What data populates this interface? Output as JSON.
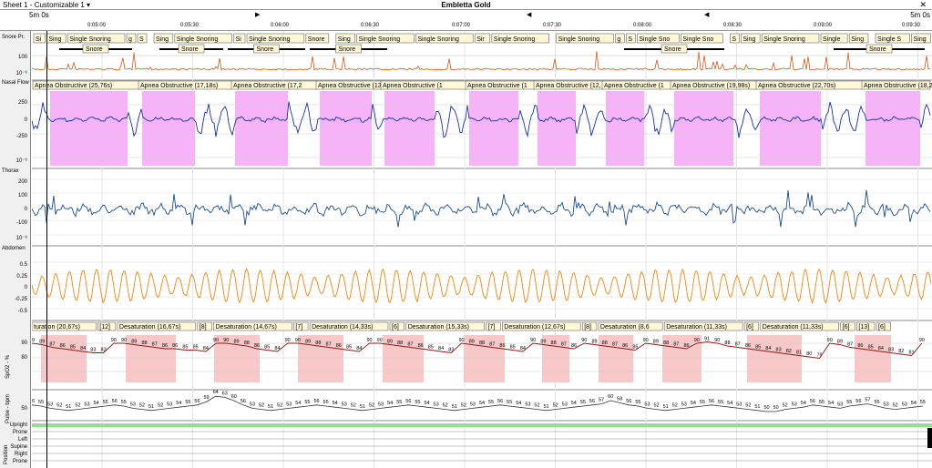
{
  "window": {
    "sheet_label": "Sheet 1 - Customizable 1 ▾",
    "title": "Embletta Gold",
    "close_glyph": "✕"
  },
  "timebar": {
    "epoch_left": "5m 0s",
    "epoch_right": "5m 0s",
    "ticks": [
      "0:05:00",
      "0:05:30",
      "0:06:00",
      "0:06:30",
      "0:07:00",
      "0:07:30",
      "0:08:00",
      "0:08:30",
      "0:09:00",
      "0:09:30"
    ],
    "markers": [
      "▶",
      "◀",
      "◀"
    ]
  },
  "channels": [
    {
      "label": "Snore Pr.",
      "ticks": [
        "100",
        "10⁻⁶"
      ]
    },
    {
      "label": "Nasal Flow",
      "ticks": [
        "250",
        "0",
        "-250",
        "10⁻⁶"
      ]
    },
    {
      "label": "Thorax",
      "ticks": [
        "200",
        "100",
        "0",
        "-100",
        "10⁻⁶"
      ]
    },
    {
      "label": "Abdomen",
      "ticks": [
        "0.5",
        "0.25",
        "0",
        "-0.25",
        "-0.5"
      ]
    },
    {
      "label": "SpO2 - %",
      "ticks": [
        "90",
        "80"
      ]
    },
    {
      "label": "Pulse - bpm",
      "ticks": [
        "50"
      ]
    },
    {
      "label": "Position",
      "ticks": [
        "Upright",
        "Prone",
        "Left",
        "Supine",
        "Right",
        "Prone"
      ]
    }
  ],
  "snore_events": [
    "Si",
    "Sing",
    "Single Snoring",
    "g",
    "S",
    "Sing",
    "Single Snoring",
    "Si",
    "Single Snoring",
    "Snore",
    "Sing",
    "Single Snoring",
    "Single Snoring",
    "Sir",
    "Single Snoring",
    "Single Snoring",
    "g",
    "S",
    "Single Sno",
    "Single Sno",
    "S",
    "Sing",
    "Single Snoring",
    "Single",
    "Sing",
    "Single S",
    "Sing",
    "Single",
    "S",
    "S"
  ],
  "snore_bars": [
    "Snore",
    "Snore",
    "Snore",
    "Snore",
    "Snore",
    "Snore"
  ],
  "apnea_events": [
    "Apnea Obstructive (25,76s)",
    "Apnea Obstructive (17,18s)",
    "Apnea Obstructive (17,2",
    "Apnea Obstructive (13,",
    "Apnea Obstructive (1",
    "Apnea Obstructive (1",
    "Apnea Obstructive (12,",
    "Apnea Obstructive (1",
    "Apnea Obstructive (19,98s)",
    "Apnea Obstructive (22,70s)",
    "Apnea Obstructive (18,26"
  ],
  "desat_events": [
    "turation (20,67s)",
    "[12]",
    "Desaturation (16,67s)",
    "[8]",
    "Desaturation (14,67s)",
    "[7]",
    "Desaturation (14,33s)",
    "[6]",
    "Desaturation (15,33s)",
    "[7]",
    "Desaturation (12,67s)",
    "[8]",
    "Desaturation (8,6",
    "Desaturation (11,33s)",
    "[6]",
    "Desaturation (11,33s)",
    "[6]",
    "Desaturation (24,33s)",
    "[13]",
    "Desaturation (11,67s)",
    "[6]"
  ],
  "spo2_values": [
    90,
    89,
    87,
    86,
    85,
    84,
    83,
    83,
    90,
    90,
    89,
    88,
    87,
    86,
    86,
    85,
    85,
    84,
    90,
    90,
    89,
    88,
    86,
    85,
    84,
    90,
    90,
    89,
    88,
    87,
    86,
    85,
    84,
    90,
    90,
    89,
    88,
    87,
    86,
    85,
    84,
    83,
    90,
    89,
    88,
    87,
    86,
    85,
    84,
    90,
    89,
    88,
    87,
    86,
    90,
    89,
    88,
    87,
    86,
    85,
    90,
    89,
    88,
    87,
    86,
    90,
    91,
    90,
    88,
    87,
    86,
    85,
    84,
    83,
    82,
    81,
    80,
    79,
    90,
    89,
    87,
    86,
    85,
    84,
    83,
    82,
    81,
    90
  ],
  "pulse_values": [
    56,
    55,
    53,
    52,
    51,
    52,
    53,
    54,
    55,
    56,
    55,
    53,
    52,
    51,
    52,
    53,
    54,
    55,
    56,
    59,
    64,
    63,
    60,
    56,
    53,
    52,
    51,
    52,
    53,
    54,
    55,
    56,
    55,
    54,
    53,
    52,
    51,
    52,
    53,
    54,
    55,
    56,
    55,
    54,
    53,
    52,
    51,
    52,
    53,
    54,
    55,
    56,
    55,
    54,
    53,
    52,
    51,
    52,
    53,
    54,
    55,
    56,
    57,
    60,
    58,
    56,
    55,
    53,
    52,
    51,
    52,
    53,
    54,
    55,
    56,
    55,
    54,
    53,
    52,
    51,
    50,
    50,
    52,
    53,
    54,
    56,
    55,
    54,
    53,
    55,
    56,
    57,
    55,
    53,
    52,
    53,
    54,
    55
  ],
  "colors": {
    "apnea": "#f7b3f7",
    "desat": "#f8c8c8",
    "flow": "#1a2fb0",
    "flow_alt": "#1aa01a",
    "thorax": "#1f4e8c",
    "abdomen": "#f0860e",
    "snore": "#d4561a",
    "snore_alt": "#b020b0",
    "spo2": "#8b1a1a",
    "spo2_alt": "#c060c0",
    "pulse": "#333333",
    "position_bar": "#90e090",
    "event_box": "#fff8d8"
  }
}
